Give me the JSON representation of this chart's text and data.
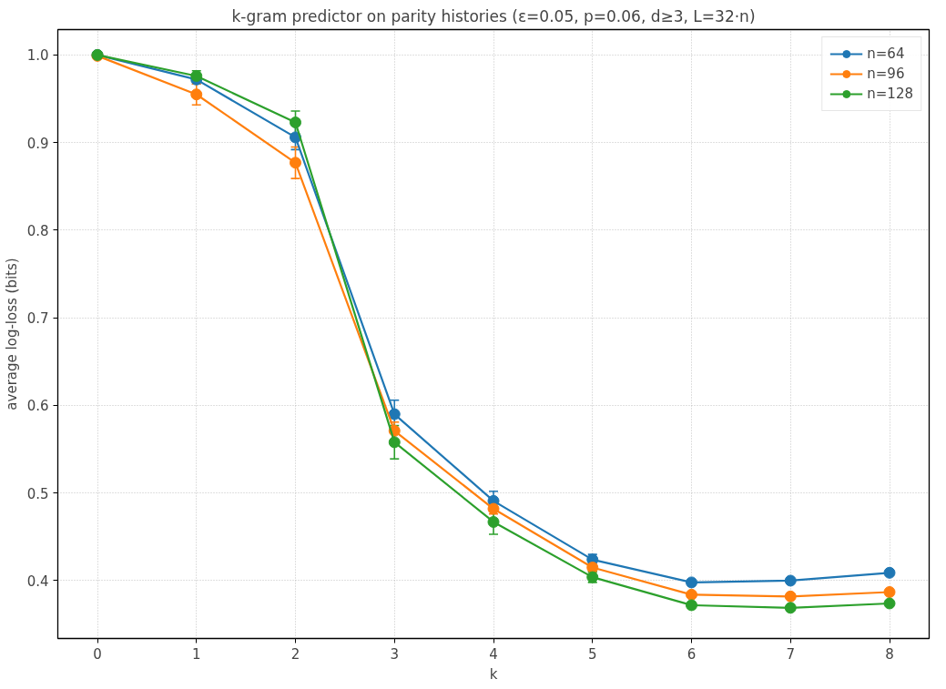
{
  "chart_data": {
    "type": "line",
    "title": "k-gram predictor on parity histories (ε=0.05, p=0.06, d≥3, L=32·n)",
    "xlabel": "k",
    "ylabel": "average log-loss (bits)",
    "x": [
      0,
      1,
      2,
      3,
      4,
      5,
      6,
      7,
      8
    ],
    "series": [
      {
        "name": "n=64",
        "color": "#1f77b4",
        "values": [
          1.0,
          0.972,
          0.906,
          0.59,
          0.491,
          0.424,
          0.398,
          0.4,
          0.409
        ],
        "errors": [
          null,
          0.005,
          0.014,
          0.016,
          0.011,
          0.006,
          null,
          null,
          null
        ]
      },
      {
        "name": "n=96",
        "color": "#ff7f0e",
        "values": [
          0.999,
          0.955,
          0.877,
          0.571,
          0.482,
          0.415,
          0.384,
          0.382,
          0.387
        ],
        "errors": [
          null,
          0.012,
          0.018,
          0.01,
          0.006,
          0.005,
          null,
          null,
          null
        ]
      },
      {
        "name": "n=128",
        "color": "#2ca02c",
        "values": [
          1.0,
          0.976,
          0.923,
          0.558,
          0.467,
          0.404,
          0.372,
          0.369,
          0.374
        ],
        "errors": [
          null,
          0.006,
          0.013,
          0.019,
          0.014,
          0.006,
          null,
          null,
          null
        ]
      }
    ],
    "xlim": [
      -0.4,
      8.4
    ],
    "ylim": [
      0.334,
      1.029
    ],
    "xticks": [
      0,
      1,
      2,
      3,
      4,
      5,
      6,
      7,
      8
    ],
    "yticks": [
      {
        "value": 0.4,
        "label": "0.4"
      },
      {
        "value": 0.5,
        "label": "0.5"
      },
      {
        "value": 0.6,
        "label": "0.6"
      },
      {
        "value": 0.7,
        "label": "0.7"
      },
      {
        "value": 0.8,
        "label": "0.8"
      },
      {
        "value": 0.9,
        "label": "0.9"
      },
      {
        "value": 1.0,
        "label": "1.0"
      }
    ],
    "grid": true,
    "legend": "top right",
    "marker": "circle",
    "line_style": "solid"
  }
}
